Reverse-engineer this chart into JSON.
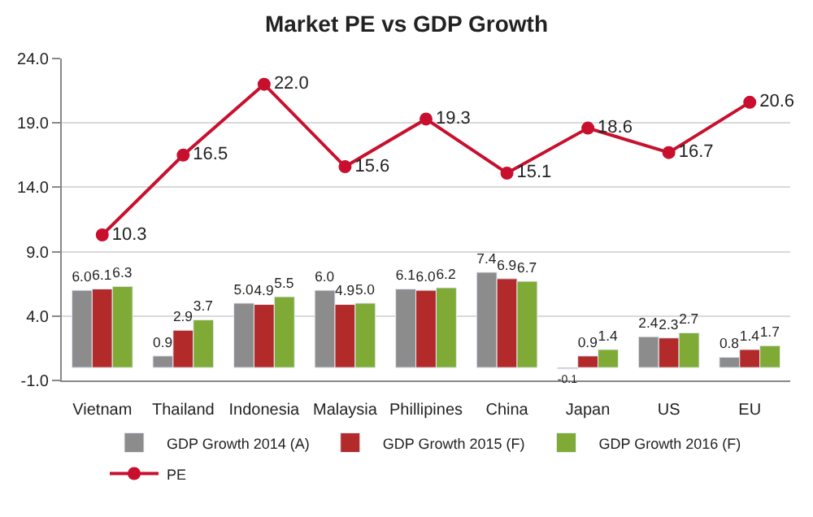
{
  "chart_data": {
    "type": "bar",
    "title": "Market PE vs GDP Growth",
    "categories": [
      "Vietnam",
      "Thailand",
      "Indonesia",
      "Malaysia",
      "Phillipines",
      "China",
      "Japan",
      "US",
      "EU"
    ],
    "series": [
      {
        "name": "GDP Growth 2014 (A)",
        "color": "#8c8c8c",
        "values": [
          6.0,
          0.9,
          5.0,
          6.0,
          6.1,
          7.4,
          -0.1,
          2.4,
          0.8
        ],
        "value_labels": [
          "6.0",
          "0.9",
          "5.0",
          "6.0",
          "6.1",
          "7.4",
          "-0.1",
          "2.4",
          "0.8"
        ]
      },
      {
        "name": "GDP Growth 2015 (F)",
        "color": "#b22a2a",
        "values": [
          6.1,
          2.9,
          4.9,
          4.9,
          6.0,
          6.9,
          0.9,
          2.3,
          1.4
        ],
        "value_labels": [
          "6.1",
          "2.9",
          "4.9",
          "4.9",
          "6.0",
          "6.9",
          "0.9",
          "2.3",
          "1.4"
        ]
      },
      {
        "name": "GDP Growth 2016 (F)",
        "color": "#7faa35",
        "values": [
          6.3,
          3.7,
          5.5,
          5.0,
          6.2,
          6.7,
          1.4,
          2.7,
          1.7
        ],
        "value_labels": [
          "6.3",
          "3.7",
          "5.5",
          "5.0",
          "6.2",
          "6.7",
          "1.4",
          "2.7",
          "1.7"
        ]
      },
      {
        "name": "PE",
        "type": "line",
        "color": "#c8102e",
        "marker": "circle",
        "values": [
          10.3,
          16.5,
          22.0,
          15.6,
          19.3,
          15.1,
          18.6,
          16.7,
          20.6
        ],
        "value_labels": [
          "10.3",
          "16.5",
          "22.0",
          "15.6",
          "19.3",
          "15.1",
          "18.6",
          "16.7",
          "20.6"
        ]
      }
    ],
    "ylim": [
      -1.0,
      24.0
    ],
    "yticks": [
      {
        "value": -1,
        "label": "-1.0"
      },
      {
        "value": 4,
        "label": "4.0"
      },
      {
        "value": 9,
        "label": "9.0"
      },
      {
        "value": 14,
        "label": "14.0"
      },
      {
        "value": 19,
        "label": "19.0"
      },
      {
        "value": 24,
        "label": "24.0"
      }
    ],
    "grid": "y",
    "legend": "bottom"
  }
}
